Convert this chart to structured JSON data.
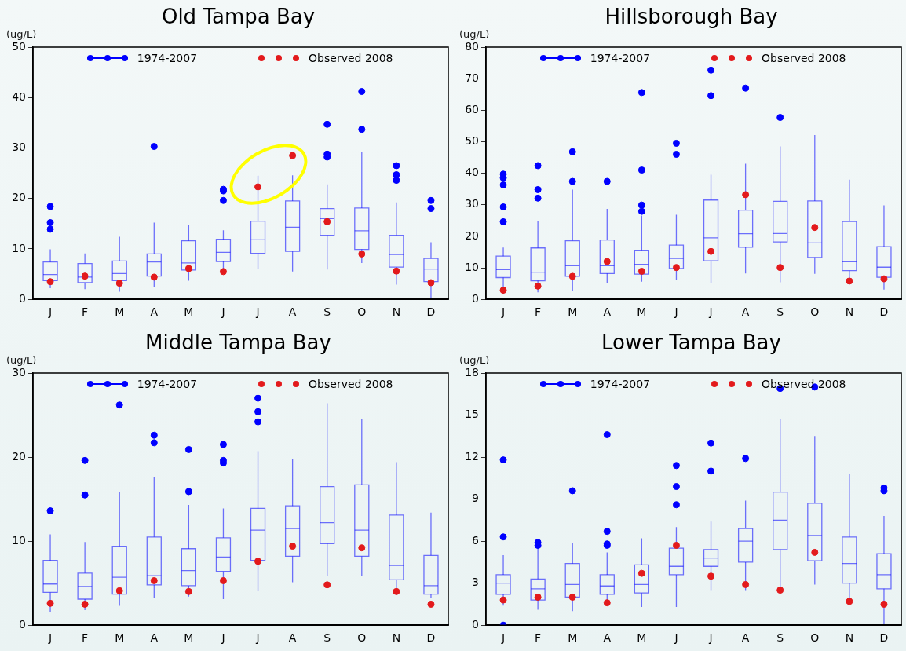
{
  "chart_data": [
    {
      "type": "box",
      "title": "Old Tampa Bay",
      "ylabel": "(ug/L)",
      "categories": [
        "J",
        "F",
        "M",
        "A",
        "M",
        "J",
        "J",
        "A",
        "S",
        "O",
        "N",
        "D"
      ],
      "ylim": [
        0,
        50
      ],
      "yticks": [
        0,
        10,
        20,
        30,
        40,
        50
      ],
      "grid": false,
      "legend": "top",
      "marker": "circle",
      "series": [
        {
          "name": "1974-2007",
          "type": "box",
          "color": "#0000ff",
          "boxes": [
            {
              "low": 2.2,
              "q1": 3.7,
              "median": 4.9,
              "q3": 7.4,
              "high": 9.9,
              "outliers": [
                18.4,
                15.2,
                13.9
              ]
            },
            {
              "low": 2.0,
              "q1": 3.3,
              "median": 4.4,
              "q3": 7.1,
              "high": 9.1
            },
            {
              "low": 1.5,
              "q1": 3.7,
              "median": 5.1,
              "q3": 7.6,
              "high": 12.4
            },
            {
              "low": 2.4,
              "q1": 4.6,
              "median": 7.4,
              "q3": 9.0,
              "high": 15.2,
              "outliers": [
                30.3
              ]
            },
            {
              "low": 3.7,
              "q1": 5.8,
              "median": 7.2,
              "q3": 11.6,
              "high": 14.8
            },
            {
              "low": 5.2,
              "q1": 7.5,
              "median": 9.3,
              "q3": 11.9,
              "high": 13.7,
              "outliers": [
                21.8,
                21.5,
                19.6
              ]
            },
            {
              "low": 6.0,
              "q1": 9.1,
              "median": 11.8,
              "q3": 15.5,
              "high": 24.5
            },
            {
              "low": 5.5,
              "q1": 9.5,
              "median": 14.3,
              "q3": 19.5,
              "high": 24.6
            },
            {
              "low": 5.9,
              "q1": 12.7,
              "median": 16.0,
              "q3": 18.0,
              "high": 22.8,
              "outliers": [
                34.7,
                28.8,
                28.2
              ]
            },
            {
              "low": 7.2,
              "q1": 9.9,
              "median": 13.6,
              "q3": 18.1,
              "high": 29.2,
              "outliers": [
                41.2,
                33.7
              ]
            },
            {
              "low": 2.9,
              "q1": 6.4,
              "median": 8.9,
              "q3": 12.7,
              "high": 19.2,
              "outliers": [
                26.5,
                24.7,
                23.6
              ]
            },
            {
              "low": 0.2,
              "q1": 3.5,
              "median": 6.0,
              "q3": 8.1,
              "high": 11.3,
              "outliers": [
                19.6,
                18.0
              ]
            }
          ]
        },
        {
          "name": "Observed 2008",
          "type": "scatter",
          "color": "#e31a1c",
          "values": [
            3.5,
            4.6,
            3.2,
            4.4,
            6.1,
            5.5,
            22.3,
            28.5,
            15.4,
            9.0,
            5.6,
            3.3
          ]
        }
      ]
    },
    {
      "type": "box",
      "title": "Hillsborough Bay",
      "ylabel": "(ug/L)",
      "categories": [
        "J",
        "F",
        "M",
        "A",
        "M",
        "J",
        "J",
        "A",
        "S",
        "O",
        "N",
        "D"
      ],
      "ylim": [
        0,
        80
      ],
      "yticks": [
        0,
        10,
        20,
        30,
        40,
        50,
        60,
        70,
        80
      ],
      "grid": false,
      "legend": "top",
      "marker": "circle",
      "series": [
        {
          "name": "1974-2007",
          "type": "box",
          "color": "#0000ff",
          "boxes": [
            {
              "low": 1.6,
              "q1": 6.9,
              "median": 9.4,
              "q3": 13.7,
              "high": 16.4,
              "outliers": [
                39.7,
                38.5,
                36.3,
                29.3,
                24.6
              ]
            },
            {
              "low": 2.2,
              "q1": 5.9,
              "median": 8.6,
              "q3": 16.3,
              "high": 24.9,
              "outliers": [
                42.4,
                34.8,
                32.1
              ]
            },
            {
              "low": 2.7,
              "q1": 7.3,
              "median": 10.7,
              "q3": 18.6,
              "high": 34.8,
              "outliers": [
                46.8,
                37.4
              ]
            },
            {
              "low": 5.1,
              "q1": 8.2,
              "median": 10.7,
              "q3": 18.8,
              "high": 28.7,
              "outliers": [
                37.4
              ]
            },
            {
              "low": 5.6,
              "q1": 8.0,
              "median": 11.1,
              "q3": 15.6,
              "high": 26.6,
              "outliers": [
                65.6,
                41.0,
                29.9,
                27.9
              ]
            },
            {
              "low": 6.0,
              "q1": 9.8,
              "median": 13.0,
              "q3": 17.2,
              "high": 26.8,
              "outliers": [
                49.5,
                46.0
              ]
            },
            {
              "low": 5.1,
              "q1": 12.2,
              "median": 19.5,
              "q3": 31.5,
              "high": 39.5,
              "outliers": [
                72.7,
                64.6
              ]
            },
            {
              "low": 8.2,
              "q1": 16.5,
              "median": 20.8,
              "q3": 28.3,
              "high": 43.0,
              "outliers": [
                67.0
              ]
            },
            {
              "low": 5.4,
              "q1": 18.2,
              "median": 20.9,
              "q3": 31.1,
              "high": 48.5,
              "outliers": [
                57.7
              ]
            },
            {
              "low": 8.1,
              "q1": 13.3,
              "median": 17.9,
              "q3": 31.2,
              "high": 52.1
            },
            {
              "low": 4.7,
              "q1": 9.1,
              "median": 11.9,
              "q3": 24.7,
              "high": 38.0
            },
            {
              "low": 3.1,
              "q1": 7.0,
              "median": 10.2,
              "q3": 16.7,
              "high": 29.8
            }
          ]
        },
        {
          "name": "Observed 2008",
          "type": "scatter",
          "color": "#e31a1c",
          "values": [
            2.9,
            4.2,
            7.3,
            12.0,
            8.9,
            10.1,
            15.2,
            33.2,
            10.1,
            22.8,
            5.8,
            6.5
          ]
        }
      ]
    },
    {
      "type": "box",
      "title": "Middle Tampa Bay",
      "ylabel": "(ug/L)",
      "categories": [
        "J",
        "F",
        "M",
        "A",
        "M",
        "J",
        "J",
        "A",
        "S",
        "O",
        "N",
        "D"
      ],
      "ylim": [
        0,
        30
      ],
      "yticks": [
        0,
        10,
        20,
        30
      ],
      "grid": false,
      "legend": "top",
      "marker": "circle",
      "series": [
        {
          "name": "1974-2007",
          "type": "box",
          "color": "#0000ff",
          "boxes": [
            {
              "low": 1.6,
              "q1": 3.9,
              "median": 4.9,
              "q3": 7.7,
              "high": 10.8,
              "outliers": [
                13.6
              ]
            },
            {
              "low": 1.8,
              "q1": 3.1,
              "median": 4.6,
              "q3": 6.2,
              "high": 9.9,
              "outliers": [
                19.6,
                15.5
              ]
            },
            {
              "low": 2.3,
              "q1": 3.7,
              "median": 5.7,
              "q3": 9.4,
              "high": 15.9,
              "outliers": [
                26.2
              ]
            },
            {
              "low": 3.2,
              "q1": 4.8,
              "median": 5.9,
              "q3": 10.5,
              "high": 17.6,
              "outliers": [
                22.6,
                21.7
              ]
            },
            {
              "low": 3.4,
              "q1": 4.7,
              "median": 6.5,
              "q3": 9.1,
              "high": 14.3,
              "outliers": [
                20.9,
                15.9
              ]
            },
            {
              "low": 3.1,
              "q1": 6.4,
              "median": 8.1,
              "q3": 10.4,
              "high": 13.9,
              "outliers": [
                21.5,
                19.6,
                19.3
              ]
            },
            {
              "low": 4.1,
              "q1": 7.7,
              "median": 11.3,
              "q3": 13.9,
              "high": 20.7,
              "outliers": [
                27.0,
                25.4,
                24.2
              ]
            },
            {
              "low": 5.1,
              "q1": 8.2,
              "median": 11.5,
              "q3": 14.2,
              "high": 19.8
            },
            {
              "low": 5.9,
              "q1": 9.7,
              "median": 12.2,
              "q3": 16.5,
              "high": 26.4
            },
            {
              "low": 5.8,
              "q1": 8.2,
              "median": 11.3,
              "q3": 16.7,
              "high": 24.5
            },
            {
              "low": 3.6,
              "q1": 5.4,
              "median": 7.1,
              "q3": 13.1,
              "high": 19.4
            },
            {
              "low": 3.2,
              "q1": 3.7,
              "median": 4.7,
              "q3": 8.3,
              "high": 13.4
            }
          ]
        },
        {
          "name": "Observed 2008",
          "type": "scatter",
          "color": "#e31a1c",
          "values": [
            2.6,
            2.5,
            4.1,
            5.3,
            4.0,
            5.3,
            7.6,
            9.4,
            4.8,
            9.2,
            4.0,
            2.5
          ]
        }
      ]
    },
    {
      "type": "box",
      "title": "Lower Tampa Bay",
      "ylabel": "(ug/L)",
      "categories": [
        "J",
        "F",
        "M",
        "A",
        "M",
        "J",
        "J",
        "A",
        "S",
        "O",
        "N",
        "D"
      ],
      "ylim": [
        0,
        18
      ],
      "yticks": [
        0,
        3,
        6,
        9,
        12,
        15,
        18
      ],
      "grid": false,
      "legend": "top",
      "marker": "circle",
      "series": [
        {
          "name": "1974-2007",
          "type": "box",
          "color": "#0000ff",
          "boxes": [
            {
              "low": 1.4,
              "q1": 2.2,
              "median": 3.0,
              "q3": 3.6,
              "high": 5.0,
              "outliers": [
                11.8,
                6.3,
                0
              ]
            },
            {
              "low": 1.1,
              "q1": 1.8,
              "median": 2.6,
              "q3": 3.3,
              "high": 5.5,
              "outliers": [
                5.9,
                5.7
              ]
            },
            {
              "low": 1.0,
              "q1": 2.0,
              "median": 2.9,
              "q3": 4.4,
              "high": 5.9,
              "outliers": [
                9.6
              ]
            },
            {
              "low": 1.7,
              "q1": 2.2,
              "median": 2.8,
              "q3": 3.6,
              "high": 5.2,
              "outliers": [
                13.6,
                6.7,
                5.8,
                5.7
              ]
            },
            {
              "low": 1.3,
              "q1": 2.3,
              "median": 2.9,
              "q3": 4.3,
              "high": 6.2
            },
            {
              "low": 1.3,
              "q1": 3.6,
              "median": 4.2,
              "q3": 5.5,
              "high": 7.0,
              "outliers": [
                11.4,
                9.9,
                8.6
              ]
            },
            {
              "low": 2.5,
              "q1": 4.2,
              "median": 4.8,
              "q3": 5.4,
              "high": 7.4,
              "outliers": [
                13.0,
                11.0
              ]
            },
            {
              "low": 2.5,
              "q1": 4.5,
              "median": 6.0,
              "q3": 6.9,
              "high": 8.9,
              "outliers": [
                11.9
              ]
            },
            {
              "low": 2.4,
              "q1": 5.4,
              "median": 7.5,
              "q3": 9.5,
              "high": 14.7,
              "outliers": [
                16.9
              ]
            },
            {
              "low": 2.9,
              "q1": 4.6,
              "median": 6.4,
              "q3": 8.7,
              "high": 13.5,
              "outliers": [
                17.0
              ]
            },
            {
              "low": 1.7,
              "q1": 3.0,
              "median": 4.4,
              "q3": 6.3,
              "high": 10.8
            },
            {
              "low": 0.1,
              "q1": 2.6,
              "median": 3.6,
              "q3": 5.1,
              "high": 7.8,
              "outliers": [
                9.8,
                9.6
              ]
            }
          ]
        },
        {
          "name": "Observed 2008",
          "type": "scatter",
          "color": "#e31a1c",
          "values": [
            1.8,
            2.0,
            2.0,
            1.6,
            3.7,
            5.7,
            3.5,
            2.9,
            2.5,
            5.2,
            1.7,
            1.5
          ]
        }
      ]
    }
  ]
}
